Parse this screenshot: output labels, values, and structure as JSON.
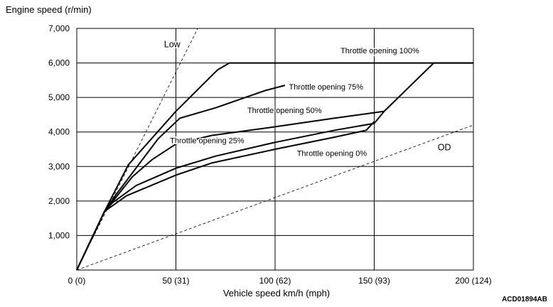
{
  "chart_data": {
    "type": "line",
    "title": "",
    "ylabel": "Engine speed (r/min)",
    "xlabel": "Vehicle speed  km/h (mph)",
    "xlim": [
      0,
      200
    ],
    "ylim": [
      0,
      7000
    ],
    "grid": true,
    "x_ticks": [
      {
        "value": 0,
        "label": "0 (0)"
      },
      {
        "value": 50,
        "label": "50 (31)"
      },
      {
        "value": 100,
        "label": "100 (62)"
      },
      {
        "value": 150,
        "label": "150 (93)"
      },
      {
        "value": 200,
        "label": "200 (124)"
      }
    ],
    "y_ticks": [
      {
        "value": 1000,
        "label": "1,000"
      },
      {
        "value": 2000,
        "label": "2,000"
      },
      {
        "value": 3000,
        "label": "3,000"
      },
      {
        "value": 4000,
        "label": "4,000"
      },
      {
        "value": 5000,
        "label": "5,000"
      },
      {
        "value": 6000,
        "label": "6,000"
      },
      {
        "value": 7000,
        "label": "7,000"
      }
    ],
    "series": [
      {
        "name": "Throttle opening 100%",
        "points": [
          [
            0,
            0
          ],
          [
            14,
            1700
          ],
          [
            26,
            3050
          ],
          [
            50,
            4600
          ],
          [
            71,
            5800
          ],
          [
            77,
            6000
          ],
          [
            200,
            6000
          ]
        ]
      },
      {
        "name": "Throttle opening 75%",
        "points": [
          [
            0,
            0
          ],
          [
            14,
            1700
          ],
          [
            20,
            2200
          ],
          [
            41,
            3800
          ],
          [
            52,
            4400
          ],
          [
            70,
            4700
          ],
          [
            95,
            5200
          ],
          [
            105,
            5350
          ]
        ]
      },
      {
        "name": "Throttle opening 50%",
        "points": [
          [
            0,
            0
          ],
          [
            14,
            1700
          ],
          [
            19,
            2050
          ],
          [
            28,
            2700
          ],
          [
            38,
            3200
          ],
          [
            50,
            3650
          ],
          [
            68,
            3900
          ],
          [
            100,
            4150
          ],
          [
            130,
            4400
          ],
          [
            155,
            4600
          ],
          [
            180,
            6000
          ],
          [
            200,
            6000
          ]
        ]
      },
      {
        "name": "Throttle opening 25%",
        "points": [
          [
            0,
            0
          ],
          [
            14,
            1700
          ],
          [
            18,
            1950
          ],
          [
            30,
            2450
          ],
          [
            50,
            2950
          ],
          [
            70,
            3300
          ],
          [
            100,
            3700
          ],
          [
            130,
            4050
          ],
          [
            150,
            4250
          ],
          [
            155,
            4600
          ]
        ]
      },
      {
        "name": "Throttle opening 0%",
        "points": [
          [
            0,
            0
          ],
          [
            14,
            1700
          ],
          [
            25,
            2150
          ],
          [
            50,
            2750
          ],
          [
            68,
            3100
          ],
          [
            100,
            3500
          ],
          [
            130,
            3850
          ],
          [
            146,
            4050
          ],
          [
            150,
            4300
          ]
        ]
      },
      {
        "name": "Low",
        "style": "dashed",
        "points": [
          [
            0,
            0
          ],
          [
            61,
            7000
          ]
        ]
      },
      {
        "name": "OD",
        "style": "dashed",
        "points": [
          [
            0,
            0
          ],
          [
            200,
            4200
          ]
        ]
      }
    ],
    "annotations": [
      {
        "text": "Low",
        "x": 44,
        "y": 6450,
        "size": "big"
      },
      {
        "text": "OD",
        "x": 182,
        "y": 3470,
        "size": "big"
      },
      {
        "text": "Throttle opening 100%",
        "x": 133,
        "y": 6280,
        "size": "small"
      },
      {
        "text": "Throttle opening 75%",
        "x": 107,
        "y": 5230,
        "size": "small"
      },
      {
        "text": "Throttle opening 50%",
        "x": 86,
        "y": 4550,
        "size": "small"
      },
      {
        "text": "Throttle opening 25%",
        "x": 47,
        "y": 3680,
        "size": "small"
      },
      {
        "text": "Throttle opening 0%",
        "x": 111,
        "y": 3300,
        "size": "small"
      }
    ]
  },
  "figure_code": "ACD01894AB"
}
